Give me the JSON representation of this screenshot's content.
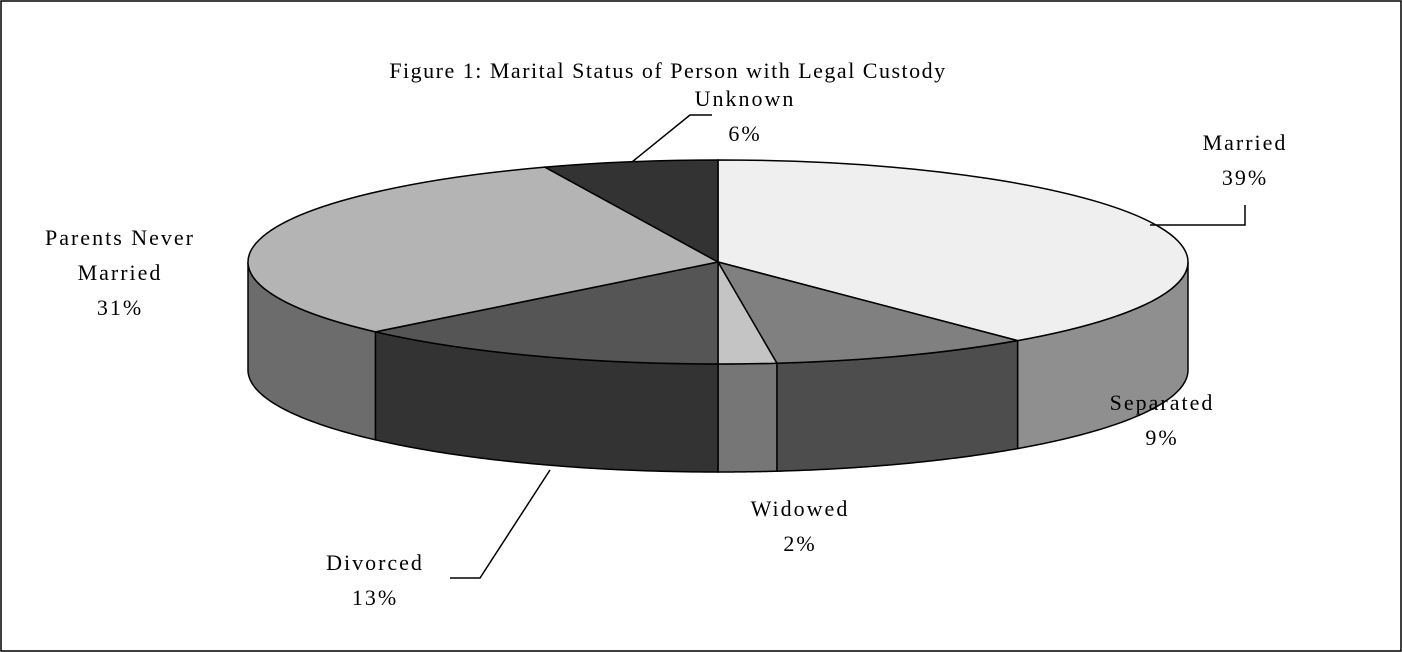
{
  "chart_data": {
    "type": "pie3d",
    "title": "Figure 1: Marital Status of Person with Legal Custody",
    "categories": [
      "Married",
      "Separated",
      "Widowed",
      "Divorced",
      "Parents Never Married",
      "Unknown"
    ],
    "values": [
      39,
      9,
      2,
      13,
      31,
      6
    ],
    "value_labels": [
      "39%",
      "9%",
      "2%",
      "13%",
      "31%",
      "6%"
    ],
    "colors": [
      "#efefef",
      "#808080",
      "#c4c4c4",
      "#555555",
      "#b4b4b4",
      "#333333"
    ]
  }
}
